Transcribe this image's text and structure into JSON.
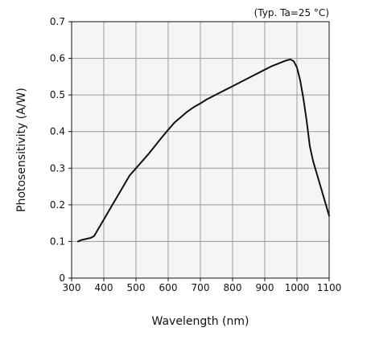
{
  "chart_data": {
    "type": "line",
    "title": "",
    "annotation": "(Typ. Ta=25 °C)",
    "xlabel": "Wavelength (nm)",
    "ylabel": "Photosensitivity (A/W)",
    "xlim": [
      300,
      1100
    ],
    "ylim": [
      0,
      0.7
    ],
    "xticks": [
      300,
      400,
      500,
      600,
      700,
      800,
      900,
      1000,
      1100
    ],
    "yticks": [
      0,
      0.1,
      0.2,
      0.3,
      0.4,
      0.5,
      0.6,
      0.7
    ],
    "xtick_labels": [
      "300",
      "400",
      "500",
      "600",
      "700",
      "800",
      "900",
      "1000",
      "1100"
    ],
    "ytick_labels": [
      "0",
      "0.1",
      "0.2",
      "0.3",
      "0.4",
      "0.5",
      "0.6",
      "0.7"
    ],
    "grid": true,
    "series": [
      {
        "x": [
          320,
          330,
          345,
          360,
          370,
          380,
          400,
          420,
          440,
          460,
          480,
          500,
          520,
          540,
          560,
          580,
          600,
          620,
          640,
          660,
          680,
          700,
          720,
          740,
          760,
          780,
          800,
          820,
          840,
          860,
          880,
          900,
          920,
          940,
          960,
          970,
          980,
          990,
          1000,
          1010,
          1020,
          1030,
          1040,
          1050,
          1060,
          1070,
          1080,
          1090,
          1100
        ],
        "y": [
          0.1,
          0.104,
          0.107,
          0.11,
          0.115,
          0.13,
          0.16,
          0.19,
          0.22,
          0.25,
          0.28,
          0.3,
          0.32,
          0.34,
          0.362,
          0.384,
          0.405,
          0.425,
          0.44,
          0.455,
          0.467,
          0.477,
          0.488,
          0.497,
          0.506,
          0.515,
          0.524,
          0.533,
          0.542,
          0.551,
          0.56,
          0.569,
          0.578,
          0.585,
          0.592,
          0.595,
          0.597,
          0.592,
          0.575,
          0.54,
          0.49,
          0.43,
          0.36,
          0.32,
          0.29,
          0.26,
          0.23,
          0.2,
          0.17
        ],
        "color": "#111111"
      }
    ]
  }
}
